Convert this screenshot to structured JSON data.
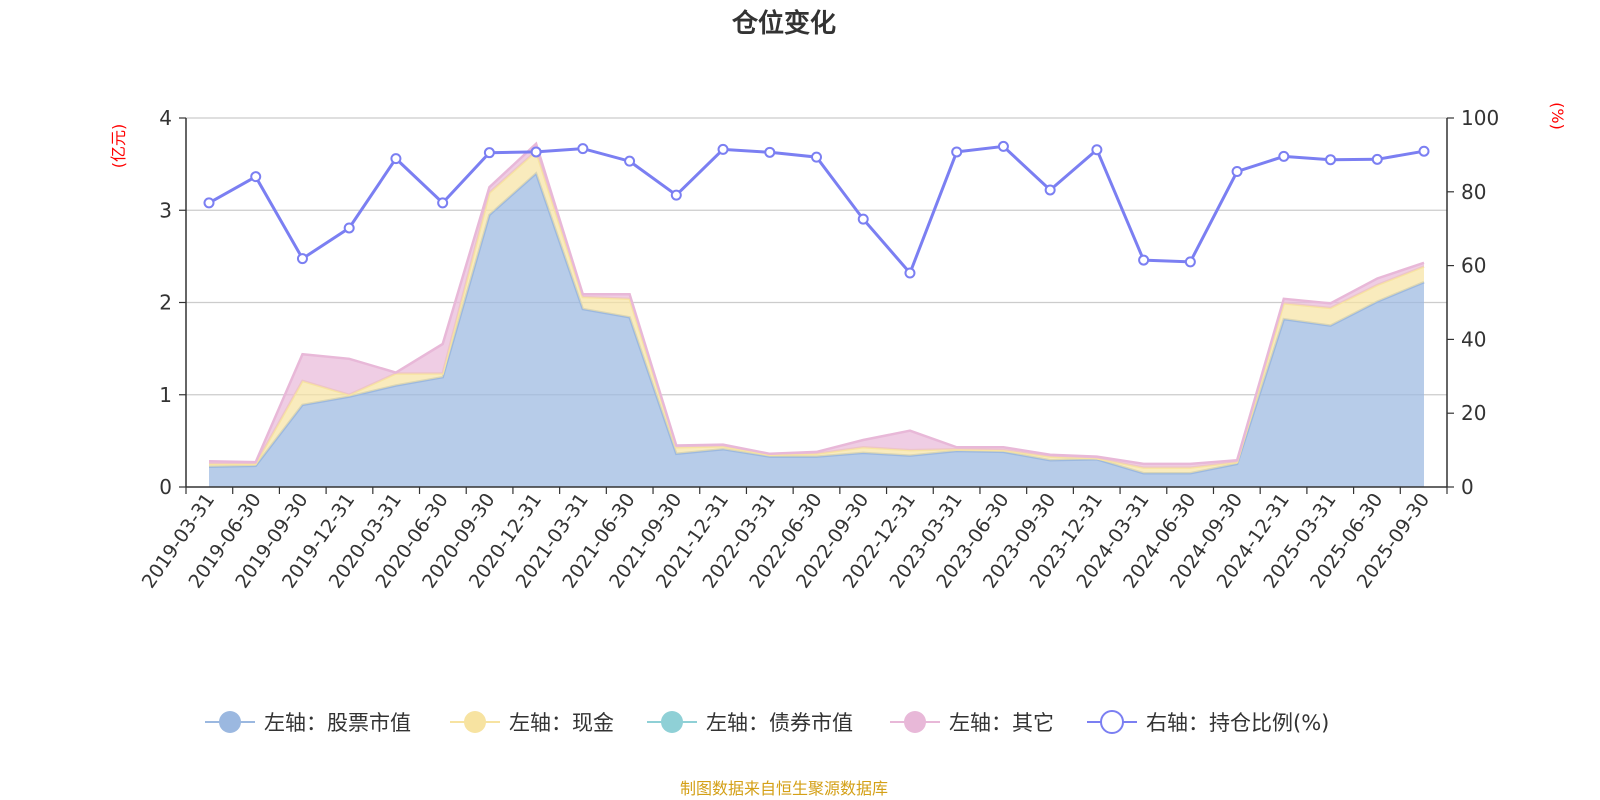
{
  "chart_data": {
    "type": "area",
    "title": "仓位变化",
    "left_unit": "(亿元)",
    "right_unit": "(%)",
    "ylim_left": [
      0,
      4
    ],
    "yticks_left": [
      "0",
      "1",
      "2",
      "3",
      "4"
    ],
    "ylim_right": [
      0,
      100
    ],
    "yticks_right": [
      "0",
      "20",
      "40",
      "60",
      "80",
      "100"
    ],
    "grid": true,
    "legend_position": "bottom",
    "categories": [
      "2019-03-31",
      "2019-06-30",
      "2019-09-30",
      "2019-12-31",
      "2020-03-31",
      "2020-06-30",
      "2020-09-30",
      "2020-12-31",
      "2021-03-31",
      "2021-06-30",
      "2021-09-30",
      "2021-12-31",
      "2022-03-31",
      "2022-06-30",
      "2022-09-30",
      "2022-12-31",
      "2023-03-31",
      "2023-06-30",
      "2023-09-30",
      "2023-12-31",
      "2024-03-31",
      "2024-06-30",
      "2024-09-30",
      "2024-12-31",
      "2025-03-31",
      "2025-06-30",
      "2025-09-30"
    ],
    "series": [
      {
        "name": "左轴：股票市值",
        "axis": "left",
        "stack": true,
        "color": "#9bb8e0",
        "values": [
          0.22,
          0.23,
          0.89,
          0.98,
          1.1,
          1.19,
          2.95,
          3.4,
          1.93,
          1.84,
          0.36,
          0.41,
          0.33,
          0.33,
          0.37,
          0.34,
          0.39,
          0.38,
          0.29,
          0.3,
          0.15,
          0.15,
          0.25,
          1.82,
          1.75,
          2.01,
          2.22
        ]
      },
      {
        "name": "左轴：现金",
        "axis": "left",
        "stack": true,
        "color": "#f7e3a1",
        "values": [
          0.03,
          0.02,
          0.26,
          0.02,
          0.13,
          0.04,
          0.24,
          0.24,
          0.13,
          0.2,
          0.07,
          0.03,
          0.02,
          0.03,
          0.06,
          0.06,
          0.02,
          0.02,
          0.04,
          0.01,
          0.06,
          0.06,
          0.02,
          0.17,
          0.19,
          0.18,
          0.17
        ]
      },
      {
        "name": "左轴：债券市值",
        "axis": "left",
        "stack": true,
        "color": "#8fd0d6",
        "values": [
          0,
          0,
          0,
          0,
          0,
          0,
          0,
          0,
          0,
          0,
          0,
          0,
          0,
          0,
          0,
          0,
          0,
          0,
          0,
          0,
          0,
          0,
          0,
          0,
          0,
          0,
          0
        ]
      },
      {
        "name": "左轴：其它",
        "axis": "left",
        "stack": true,
        "color": "#e8b8d8",
        "values": [
          0.03,
          0.02,
          0.29,
          0.39,
          0.01,
          0.32,
          0.06,
          0.08,
          0.03,
          0.05,
          0.02,
          0.02,
          0.01,
          0.02,
          0.08,
          0.21,
          0.02,
          0.03,
          0.02,
          0.02,
          0.04,
          0.04,
          0.02,
          0.05,
          0.05,
          0.07,
          0.04
        ]
      },
      {
        "name": "右轴：持仓比例(%)",
        "axis": "right",
        "type": "line",
        "color": "#7b7ff2",
        "values": [
          77.0,
          84.1,
          61.9,
          70.2,
          89.0,
          77.0,
          90.6,
          90.8,
          91.7,
          88.3,
          79.1,
          91.5,
          90.7,
          89.4,
          72.6,
          58.0,
          90.8,
          92.3,
          80.5,
          91.4,
          61.5,
          61.0,
          85.5,
          89.6,
          88.7,
          88.8,
          91.0
        ]
      }
    ]
  },
  "source_note": "制图数据来自恒生聚源数据库"
}
